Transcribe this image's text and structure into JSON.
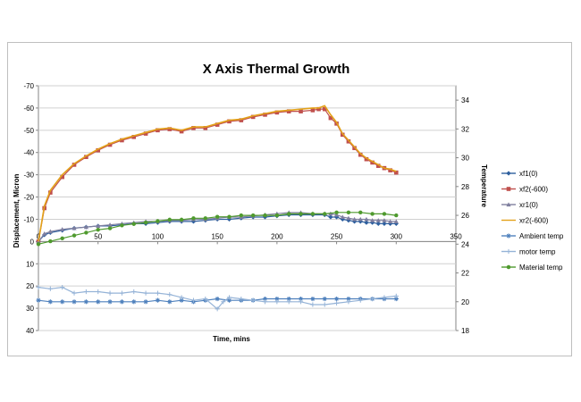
{
  "chart_data": {
    "type": "line",
    "title": "X Axis Thermal Growth",
    "xlabel": "Time, mins",
    "ylabel": "Displacement, Micron",
    "y2label": "Temperature",
    "xlim": [
      0,
      350
    ],
    "xticks": [
      "0",
      "50",
      "100",
      "150",
      "200",
      "250",
      "300",
      "350"
    ],
    "ylim": [
      -70,
      40
    ],
    "y_inverted": true,
    "yticks": [
      "-70",
      "-60",
      "-50",
      "-40",
      "-30",
      "-20",
      "-10",
      "0",
      "10",
      "20",
      "30",
      "40"
    ],
    "y2lim": [
      18,
      35
    ],
    "y2ticks": [
      "18",
      "20",
      "22",
      "24",
      "26",
      "28",
      "30",
      "32",
      "34"
    ],
    "grid": "horizontal",
    "legend_position": "right",
    "series": [
      {
        "name": "xf1(0)",
        "axis": "y1",
        "color": "#2e5f9e",
        "marker": "diamond",
        "x": [
          0,
          5,
          10,
          20,
          30,
          40,
          50,
          60,
          70,
          80,
          90,
          100,
          110,
          120,
          130,
          140,
          150,
          160,
          170,
          180,
          190,
          200,
          210,
          220,
          230,
          240,
          245,
          250,
          255,
          260,
          265,
          270,
          275,
          280,
          285,
          290,
          295,
          300
        ],
        "y": [
          0,
          -3,
          -4,
          -5,
          -6,
          -6.5,
          -7,
          -7,
          -7.5,
          -8,
          -8,
          -8.5,
          -9,
          -9,
          -9,
          -9.5,
          -10,
          -10,
          -10.5,
          -11,
          -11,
          -11.5,
          -12,
          -12,
          -12,
          -12,
          -11,
          -11,
          -10,
          -9.5,
          -9,
          -9,
          -8.5,
          -8.5,
          -8,
          -8,
          -8,
          -8
        ]
      },
      {
        "name": "xf2(-600)",
        "axis": "y1",
        "color": "#c0504d",
        "marker": "square",
        "x": [
          0,
          5,
          10,
          20,
          30,
          40,
          50,
          60,
          70,
          80,
          90,
          100,
          110,
          120,
          130,
          140,
          150,
          160,
          170,
          180,
          190,
          200,
          210,
          220,
          230,
          235,
          240,
          245,
          250,
          255,
          260,
          265,
          270,
          275,
          280,
          285,
          290,
          295,
          300
        ],
        "y": [
          0,
          -15,
          -22,
          -29,
          -34.5,
          -38,
          -41,
          -43.5,
          -45.5,
          -47,
          -48.5,
          -50,
          -50.5,
          -49.5,
          -51,
          -51,
          -52.5,
          -54,
          -54.5,
          -56,
          -57,
          -58,
          -58.5,
          -58.5,
          -59,
          -59.5,
          -59.5,
          -55.5,
          -53,
          -48,
          -45,
          -42,
          -39,
          -37,
          -35.5,
          -34,
          -33,
          -32,
          -31
        ]
      },
      {
        "name": "xr1(0)",
        "axis": "y1",
        "color": "#7f7f9f",
        "marker": "triangle",
        "x": [
          0,
          5,
          10,
          20,
          30,
          40,
          50,
          60,
          70,
          80,
          90,
          100,
          110,
          120,
          130,
          140,
          150,
          160,
          170,
          180,
          190,
          200,
          210,
          220,
          230,
          240,
          245,
          250,
          255,
          260,
          265,
          270,
          275,
          280,
          285,
          290,
          295,
          300
        ],
        "y": [
          0,
          -3.5,
          -4.5,
          -5.5,
          -6,
          -6.5,
          -7,
          -7.5,
          -8,
          -8.5,
          -9,
          -9,
          -9.5,
          -9.5,
          -10,
          -10,
          -10.5,
          -11,
          -11,
          -11.5,
          -12,
          -12.5,
          -13,
          -13,
          -12.5,
          -12.5,
          -12.5,
          -12,
          -11,
          -10.5,
          -10,
          -10,
          -10,
          -9.5,
          -9.5,
          -9.5,
          -9,
          -9
        ]
      },
      {
        "name": "xr2(-600)",
        "axis": "y1",
        "color": "#e3a21a",
        "marker": "none",
        "x": [
          0,
          5,
          10,
          20,
          30,
          40,
          50,
          60,
          70,
          80,
          90,
          100,
          110,
          120,
          130,
          140,
          150,
          160,
          170,
          180,
          190,
          200,
          210,
          220,
          230,
          235,
          240,
          245,
          250,
          255,
          260,
          265,
          270,
          275,
          280,
          285,
          290,
          295,
          300
        ],
        "y": [
          0,
          -16,
          -23,
          -30,
          -35,
          -38.5,
          -41.5,
          -44,
          -46,
          -47.5,
          -49,
          -50.5,
          -51,
          -50,
          -51.5,
          -51.5,
          -53,
          -54.5,
          -55,
          -56.5,
          -57.5,
          -58.5,
          -59,
          -59.5,
          -60,
          -60,
          -61,
          -57,
          -53.5,
          -48.5,
          -45.5,
          -42.5,
          -39.5,
          -37.5,
          -36,
          -34.5,
          -33,
          -32.5,
          -31.5
        ]
      },
      {
        "name": "Ambient temp",
        "axis": "y2",
        "color": "#4f81bd",
        "marker": "star",
        "x": [
          0,
          10,
          20,
          30,
          40,
          50,
          60,
          70,
          80,
          90,
          100,
          110,
          120,
          130,
          140,
          150,
          160,
          170,
          180,
          190,
          200,
          210,
          220,
          230,
          240,
          250,
          260,
          270,
          280,
          290,
          300
        ],
        "y": [
          20.1,
          20.0,
          20.0,
          20.0,
          20.0,
          20.0,
          20.0,
          20.0,
          20.0,
          20.0,
          20.1,
          20.0,
          20.1,
          20.0,
          20.1,
          20.2,
          20.1,
          20.1,
          20.1,
          20.2,
          20.2,
          20.2,
          20.2,
          20.2,
          20.2,
          20.2,
          20.2,
          20.2,
          20.2,
          20.2,
          20.2
        ]
      },
      {
        "name": "motor temp",
        "axis": "y2",
        "color": "#95b3d7",
        "marker": "cross",
        "x": [
          0,
          10,
          20,
          30,
          40,
          50,
          60,
          70,
          80,
          90,
          100,
          110,
          120,
          130,
          140,
          150,
          155,
          160,
          170,
          180,
          190,
          200,
          210,
          220,
          230,
          240,
          250,
          260,
          270,
          280,
          290,
          300
        ],
        "y": [
          21.0,
          20.9,
          21.0,
          20.6,
          20.7,
          20.7,
          20.6,
          20.6,
          20.7,
          20.6,
          20.6,
          20.5,
          20.3,
          20.1,
          20.2,
          19.5,
          20.0,
          20.3,
          20.2,
          20.1,
          20.0,
          20.0,
          20.0,
          20.0,
          19.8,
          19.8,
          19.9,
          20.0,
          20.1,
          20.2,
          20.3,
          20.4
        ]
      },
      {
        "name": "Material temp",
        "axis": "y2",
        "color": "#4f9a2e",
        "marker": "circle",
        "x": [
          0,
          10,
          20,
          30,
          40,
          50,
          60,
          70,
          80,
          90,
          100,
          110,
          120,
          130,
          140,
          150,
          160,
          170,
          180,
          190,
          200,
          210,
          220,
          230,
          240,
          250,
          260,
          270,
          280,
          290,
          300
        ],
        "y": [
          24.0,
          24.2,
          24.4,
          24.6,
          24.8,
          25.0,
          25.1,
          25.3,
          25.4,
          25.5,
          25.6,
          25.7,
          25.7,
          25.8,
          25.8,
          25.9,
          25.9,
          26.0,
          26.0,
          26.0,
          26.0,
          26.1,
          26.1,
          26.1,
          26.1,
          26.2,
          26.2,
          26.2,
          26.1,
          26.1,
          26.0
        ]
      }
    ]
  }
}
